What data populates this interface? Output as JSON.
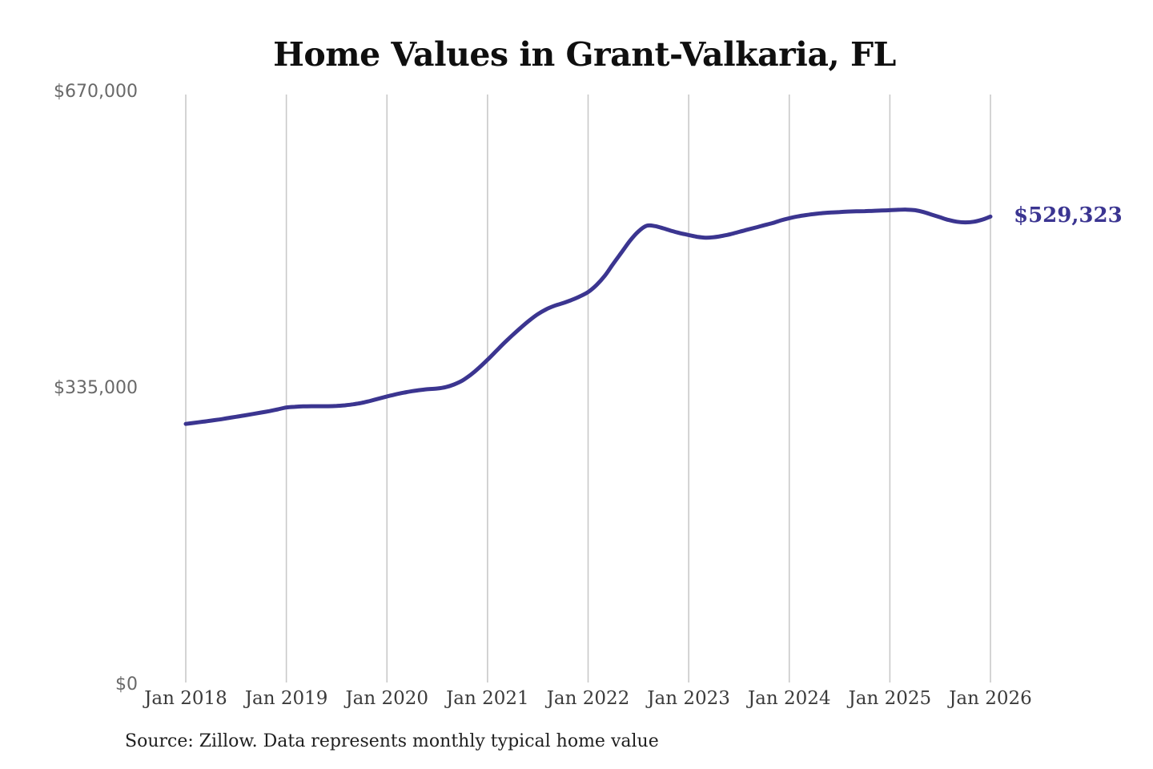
{
  "title": "Home Values in Grant-Valkaria, FL",
  "source_note": "Source: Zillow. Data represents monthly typical home value",
  "end_label": "$529,323",
  "colors": {
    "line": "#3b3590",
    "end_label": "#3b3591",
    "gridline": "#c9c9c9",
    "y_tick_text": "#696969",
    "x_tick_text": "#3b3b3b",
    "title_text": "#0f0f0f",
    "source_text": "#1f1f1f",
    "background": "#ffffff"
  },
  "chart_data": {
    "type": "line",
    "title": "Home Values in Grant-Valkaria, FL",
    "xlabel": "",
    "ylabel": "",
    "ylim": [
      0,
      670000
    ],
    "grid": "vertical-only",
    "legend": "none",
    "y_ticks": [
      {
        "value": 670000,
        "label": "$670,000"
      },
      {
        "value": 335000,
        "label": "$335,000"
      },
      {
        "value": 0,
        "label": "$0"
      }
    ],
    "x_tick_labels": [
      "Jan 2018",
      "Jan 2019",
      "Jan 2020",
      "Jan 2021",
      "Jan 2022",
      "Jan 2023",
      "Jan 2024",
      "Jan 2025",
      "Jan 2026"
    ],
    "series": [
      {
        "name": "Monthly typical home value",
        "start_month": "2018-01",
        "end_month": "2026-01",
        "end_value": 529323,
        "values": [
          295000,
          296200,
          297400,
          298700,
          300000,
          301500,
          303000,
          304600,
          306200,
          307800,
          309500,
          311500,
          313500,
          314300,
          314800,
          315000,
          315000,
          315000,
          315300,
          316000,
          317200,
          318800,
          321000,
          323500,
          326000,
          328300,
          330300,
          332000,
          333300,
          334300,
          335000,
          336500,
          339500,
          344000,
          350500,
          358500,
          367500,
          377000,
          386500,
          395500,
          404000,
          412000,
          419000,
          424500,
          428500,
          431500,
          435000,
          439000,
          444000,
          452000,
          462500,
          476000,
          489000,
          502000,
          512500,
          519000,
          518500,
          516000,
          513000,
          510500,
          508500,
          506500,
          505500,
          506000,
          507500,
          509500,
          512000,
          514500,
          517000,
          519500,
          522000,
          525000,
          527500,
          529500,
          531000,
          532300,
          533300,
          534000,
          534500,
          535000,
          535300,
          535500,
          535800,
          536200,
          536500,
          537000,
          537200,
          536500,
          534500,
          531500,
          528500,
          525500,
          523500,
          522800,
          523500,
          525800,
          529323
        ]
      }
    ]
  }
}
